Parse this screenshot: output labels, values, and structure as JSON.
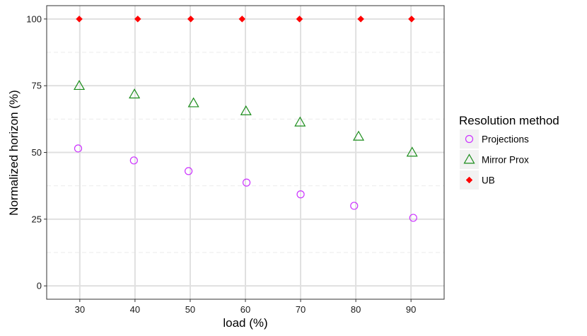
{
  "chart_data": {
    "type": "scatter",
    "xlabel": "load (%)",
    "ylabel": "Normalized horizon (%)",
    "xlim": [
      24,
      96
    ],
    "ylim": [
      -5,
      105
    ],
    "x_ticks": [
      30,
      40,
      50,
      60,
      70,
      80,
      90
    ],
    "y_ticks": [
      0,
      25,
      50,
      75,
      100
    ],
    "grid": true,
    "legend": {
      "title": "Resolution method",
      "placement": "right"
    },
    "series": [
      {
        "name": "Projections",
        "marker": "open-circle",
        "color": "#cc33ff",
        "points": [
          [
            29.7,
            51.5
          ],
          [
            39.8,
            47.0
          ],
          [
            49.7,
            43.0
          ],
          [
            60.2,
            38.7
          ],
          [
            70.0,
            34.3
          ],
          [
            79.7,
            30.0
          ],
          [
            90.4,
            25.5
          ]
        ]
      },
      {
        "name": "Mirror Prox",
        "marker": "open-triangle",
        "color": "#1a8c1a",
        "points": [
          [
            29.9,
            75.0
          ],
          [
            39.9,
            71.8
          ],
          [
            50.6,
            68.5
          ],
          [
            60.1,
            65.5
          ],
          [
            69.9,
            61.3
          ],
          [
            80.5,
            56.0
          ],
          [
            90.2,
            50.0
          ]
        ]
      },
      {
        "name": "UB",
        "marker": "filled-diamond",
        "color": "#ff0000",
        "points": [
          [
            29.9,
            100
          ],
          [
            40.5,
            100
          ],
          [
            50.1,
            100
          ],
          [
            59.4,
            100
          ],
          [
            69.8,
            100
          ],
          [
            80.9,
            100
          ],
          [
            90.1,
            100
          ]
        ]
      }
    ]
  }
}
